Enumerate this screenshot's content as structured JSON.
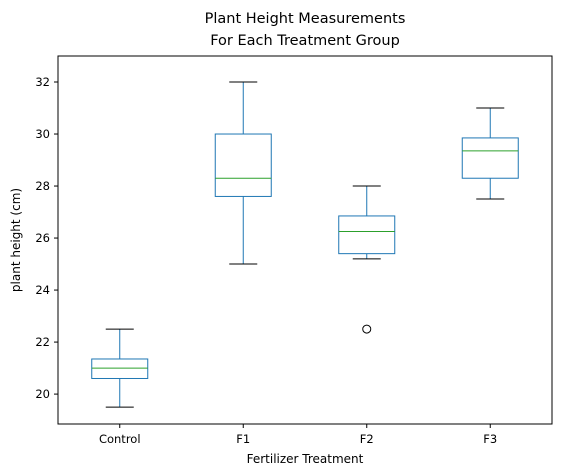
{
  "chart_data": {
    "type": "box",
    "title": [
      "Plant Height Measurements",
      "For Each Treatment Group"
    ],
    "xlabel": "Fertilizer Treatment",
    "ylabel": "plant height (cm)",
    "ylim": [
      18.85,
      33.0
    ],
    "yticks": [
      20,
      22,
      24,
      26,
      28,
      30,
      32
    ],
    "categories": [
      "Control",
      "F1",
      "F2",
      "F3"
    ],
    "boxes": [
      {
        "category": "Control",
        "whisker_low": 19.5,
        "q1": 20.6,
        "median": 21.0,
        "q3": 21.35,
        "whisker_high": 22.5,
        "outliers": []
      },
      {
        "category": "F1",
        "whisker_low": 25.0,
        "q1": 27.6,
        "median": 28.3,
        "q3": 30.0,
        "whisker_high": 32.0,
        "outliers": []
      },
      {
        "category": "F2",
        "whisker_low": 25.2,
        "q1": 25.4,
        "median": 26.25,
        "q3": 26.85,
        "whisker_high": 28.0,
        "outliers": [
          22.5
        ]
      },
      {
        "category": "F3",
        "whisker_low": 27.5,
        "q1": 28.3,
        "median": 29.35,
        "q3": 29.85,
        "whisker_high": 31.0,
        "outliers": []
      }
    ],
    "grid": false,
    "colors": {
      "box": "#1f77b4",
      "median": "#2ca02c",
      "whisker": "#1f77b4",
      "cap": "#000000",
      "outlier": "#000000"
    }
  }
}
